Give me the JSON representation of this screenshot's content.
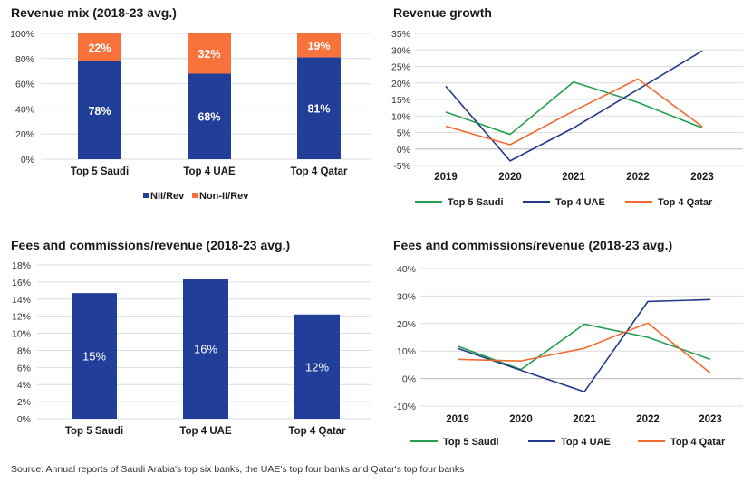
{
  "chart_data": [
    {
      "type": "bar",
      "stacked": true,
      "title": "Revenue mix (2018-23 avg.)",
      "categories": [
        "Top 5 Saudi",
        "Top 4 UAE",
        "Top 4 Qatar"
      ],
      "series": [
        {
          "name": "NII/Rev",
          "values": [
            78,
            68,
            81
          ],
          "labels": [
            "78%",
            "68%",
            "81%"
          ],
          "color": "#213f99"
        },
        {
          "name": "Non-II/Rev",
          "values": [
            22,
            32,
            19
          ],
          "labels": [
            "22%",
            "32%",
            "19%"
          ],
          "color": "#f7733b"
        }
      ],
      "ylim": [
        0,
        100
      ],
      "yticks": [
        "0%",
        "20%",
        "40%",
        "60%",
        "80%",
        "100%"
      ],
      "grid": true,
      "legend": "bottom"
    },
    {
      "type": "line",
      "title": "Revenue growth",
      "x": [
        "2019",
        "2020",
        "2021",
        "2022",
        "2023"
      ],
      "series": [
        {
          "name": "Top 5 Saudi",
          "values": [
            11.2,
            4.4,
            20.3,
            14.1,
            6.4
          ],
          "color": "#22a050"
        },
        {
          "name": "Top 4 UAE",
          "values": [
            19.0,
            -3.6,
            6.4,
            18.0,
            29.7
          ],
          "color": "#233a8c"
        },
        {
          "name": "Top 4 Qatar",
          "values": [
            6.9,
            1.3,
            11.5,
            21.2,
            6.8
          ],
          "color": "#f26a2e"
        }
      ],
      "ylim": [
        -5,
        35
      ],
      "yticks": [
        "-5%",
        "0%",
        "5%",
        "10%",
        "15%",
        "20%",
        "25%",
        "30%",
        "35%"
      ],
      "grid": true,
      "legend": "bottom"
    },
    {
      "type": "bar",
      "title": "Fees and commissions/revenue (2018-23 avg.)",
      "categories": [
        "Top 5 Saudi",
        "Top 4 UAE",
        "Top 4 Qatar"
      ],
      "values": [
        14.7,
        16.4,
        12.2
      ],
      "labels": [
        "15%",
        "16%",
        "12%"
      ],
      "color": "#213f99",
      "ylim": [
        0,
        18
      ],
      "yticks": [
        "0%",
        "2%",
        "4%",
        "6%",
        "8%",
        "10%",
        "12%",
        "14%",
        "16%",
        "18%"
      ],
      "grid": true
    },
    {
      "type": "line",
      "title": "Fees and commissions/revenue (2018-23 avg.)",
      "x": [
        "2019",
        "2020",
        "2021",
        "2022",
        "2023"
      ],
      "series": [
        {
          "name": "Top 5 Saudi",
          "values": [
            11.8,
            3.3,
            19.8,
            15.0,
            7.0
          ],
          "color": "#22a050"
        },
        {
          "name": "Top 4 UAE",
          "values": [
            11.0,
            3.0,
            -4.8,
            28.0,
            28.7
          ],
          "color": "#233a8c"
        },
        {
          "name": "Top 4 Qatar",
          "values": [
            7.0,
            6.4,
            11.0,
            20.2,
            2.0
          ],
          "color": "#f26a2e"
        }
      ],
      "ylim": [
        -10,
        40
      ],
      "yticks": [
        "-10%",
        "0%",
        "10%",
        "20%",
        "30%",
        "40%"
      ],
      "grid": true,
      "legend": "bottom"
    }
  ],
  "source": "Source: Annual reports of Saudi Arabia's top six banks, the UAE's top four banks and Qatar's top four banks"
}
